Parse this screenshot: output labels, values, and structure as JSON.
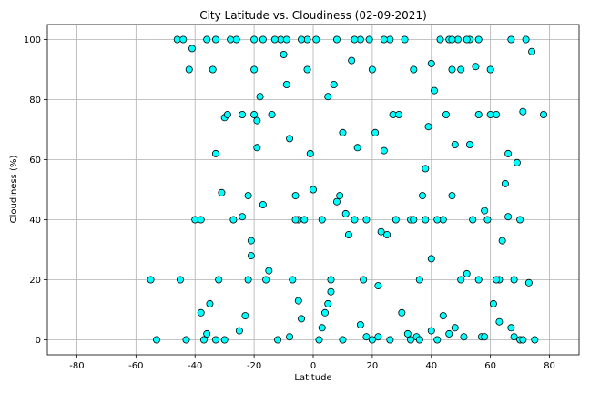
{
  "chart_data": {
    "type": "scatter",
    "title": "City Latitude vs. Cloudiness (02-09-2021)",
    "xlabel": "Latitude",
    "ylabel": "Cloudiness (%)",
    "xlim": [
      -90,
      90
    ],
    "ylim": [
      -5,
      105
    ],
    "xticks": [
      -80,
      -60,
      -40,
      -20,
      0,
      20,
      40,
      60,
      80
    ],
    "yticks": [
      0,
      20,
      40,
      60,
      80,
      100
    ],
    "grid": true,
    "legend": "none",
    "colors": {
      "marker_fill": "#00FFFF",
      "marker_edge": "#000000",
      "grid": "#b0b0b0",
      "axes": "#000000"
    },
    "points": [
      [
        -55,
        20
      ],
      [
        -53,
        0
      ],
      [
        -45,
        20
      ],
      [
        -46,
        100
      ],
      [
        -44,
        100
      ],
      [
        -42,
        90
      ],
      [
        -41,
        97
      ],
      [
        -40,
        40
      ],
      [
        -38,
        40
      ],
      [
        -37,
        0
      ],
      [
        -36,
        2
      ],
      [
        -35,
        12
      ],
      [
        -34,
        90
      ],
      [
        -33,
        62
      ],
      [
        -33,
        100
      ],
      [
        -32,
        20
      ],
      [
        -31,
        49
      ],
      [
        -30,
        74
      ],
      [
        -29,
        75
      ],
      [
        -27,
        40
      ],
      [
        -26,
        100
      ],
      [
        -24,
        41
      ],
      [
        -23,
        8
      ],
      [
        -22,
        20
      ],
      [
        -22,
        48
      ],
      [
        -21,
        33
      ],
      [
        -21,
        28
      ],
      [
        -20,
        90
      ],
      [
        -20,
        75
      ],
      [
        -19,
        64
      ],
      [
        -18,
        81
      ],
      [
        -17,
        45
      ],
      [
        -16,
        20
      ],
      [
        -15,
        23
      ],
      [
        -14,
        75
      ],
      [
        -12,
        0
      ],
      [
        -11,
        100
      ],
      [
        -10,
        95
      ],
      [
        -9,
        85
      ],
      [
        -8,
        67
      ],
      [
        -8,
        1
      ],
      [
        -7,
        20
      ],
      [
        -6,
        48
      ],
      [
        -5,
        40
      ],
      [
        -5,
        13
      ],
      [
        -4,
        7
      ],
      [
        -3,
        40
      ],
      [
        -2,
        100
      ],
      [
        -1,
        62
      ],
      [
        0,
        50
      ],
      [
        1,
        100
      ],
      [
        2,
        0
      ],
      [
        3,
        4
      ],
      [
        4,
        9
      ],
      [
        5,
        12
      ],
      [
        5,
        81
      ],
      [
        6,
        16
      ],
      [
        7,
        85
      ],
      [
        8,
        46
      ],
      [
        9,
        48
      ],
      [
        10,
        69
      ],
      [
        11,
        42
      ],
      [
        12,
        35
      ],
      [
        13,
        93
      ],
      [
        14,
        40
      ],
      [
        15,
        64
      ],
      [
        16,
        5
      ],
      [
        17,
        20
      ],
      [
        18,
        40
      ],
      [
        19,
        100
      ],
      [
        20,
        90
      ],
      [
        21,
        69
      ],
      [
        22,
        18
      ],
      [
        23,
        36
      ],
      [
        24,
        63
      ],
      [
        25,
        35
      ],
      [
        26,
        100
      ],
      [
        27,
        75
      ],
      [
        28,
        40
      ],
      [
        30,
        9
      ],
      [
        31,
        100
      ],
      [
        32,
        2
      ],
      [
        33,
        40
      ],
      [
        34,
        90
      ],
      [
        35,
        1
      ],
      [
        36,
        20
      ],
      [
        37,
        48
      ],
      [
        38,
        57
      ],
      [
        39,
        71
      ],
      [
        40,
        92
      ],
      [
        40,
        3
      ],
      [
        41,
        83
      ],
      [
        42,
        0
      ],
      [
        43,
        100
      ],
      [
        44,
        8
      ],
      [
        45,
        75
      ],
      [
        46,
        2
      ],
      [
        47,
        48
      ],
      [
        48,
        65
      ],
      [
        48,
        4
      ],
      [
        49,
        100
      ],
      [
        50,
        20
      ],
      [
        51,
        1
      ],
      [
        52,
        22
      ],
      [
        53,
        65
      ],
      [
        54,
        40
      ],
      [
        55,
        91
      ],
      [
        56,
        20
      ],
      [
        57,
        1
      ],
      [
        58,
        43
      ],
      [
        59,
        40
      ],
      [
        60,
        90
      ],
      [
        61,
        12
      ],
      [
        62,
        75
      ],
      [
        63,
        6
      ],
      [
        64,
        33
      ],
      [
        65,
        52
      ],
      [
        66,
        62
      ],
      [
        67,
        100
      ],
      [
        68,
        20
      ],
      [
        69,
        59
      ],
      [
        70,
        40
      ],
      [
        71,
        76
      ],
      [
        72,
        100
      ],
      [
        73,
        19
      ],
      [
        74,
        96
      ],
      [
        75,
        0
      ],
      [
        78,
        75
      ],
      [
        44,
        40
      ],
      [
        47,
        90
      ],
      [
        -43,
        0
      ],
      [
        -38,
        9
      ],
      [
        -36,
        100
      ],
      [
        -28,
        100
      ],
      [
        -25,
        3
      ],
      [
        -20,
        100
      ],
      [
        -19,
        73
      ],
      [
        -13,
        100
      ],
      [
        -6,
        40
      ],
      [
        -2,
        90
      ],
      [
        3,
        40
      ],
      [
        8,
        100
      ],
      [
        10,
        0
      ],
      [
        16,
        100
      ],
      [
        18,
        1
      ],
      [
        22,
        1
      ],
      [
        24,
        100
      ],
      [
        29,
        75
      ],
      [
        33,
        0
      ],
      [
        36,
        0
      ],
      [
        38,
        40
      ],
      [
        42,
        40
      ],
      [
        46,
        100
      ],
      [
        50,
        90
      ],
      [
        53,
        100
      ],
      [
        56,
        75
      ],
      [
        58,
        1
      ],
      [
        60,
        75
      ],
      [
        63,
        20
      ],
      [
        66,
        41
      ],
      [
        68,
        1
      ],
      [
        70,
        0
      ],
      [
        -33,
        0
      ],
      [
        -30,
        0
      ],
      [
        -24,
        75
      ],
      [
        -17,
        100
      ],
      [
        -9,
        100
      ],
      [
        -4,
        100
      ],
      [
        6,
        20
      ],
      [
        14,
        100
      ],
      [
        20,
        0
      ],
      [
        26,
        0
      ],
      [
        34,
        40
      ],
      [
        40,
        27
      ],
      [
        47,
        100
      ],
      [
        52,
        100
      ],
      [
        56,
        100
      ],
      [
        62,
        20
      ],
      [
        67,
        4
      ],
      [
        71,
        0
      ]
    ]
  }
}
